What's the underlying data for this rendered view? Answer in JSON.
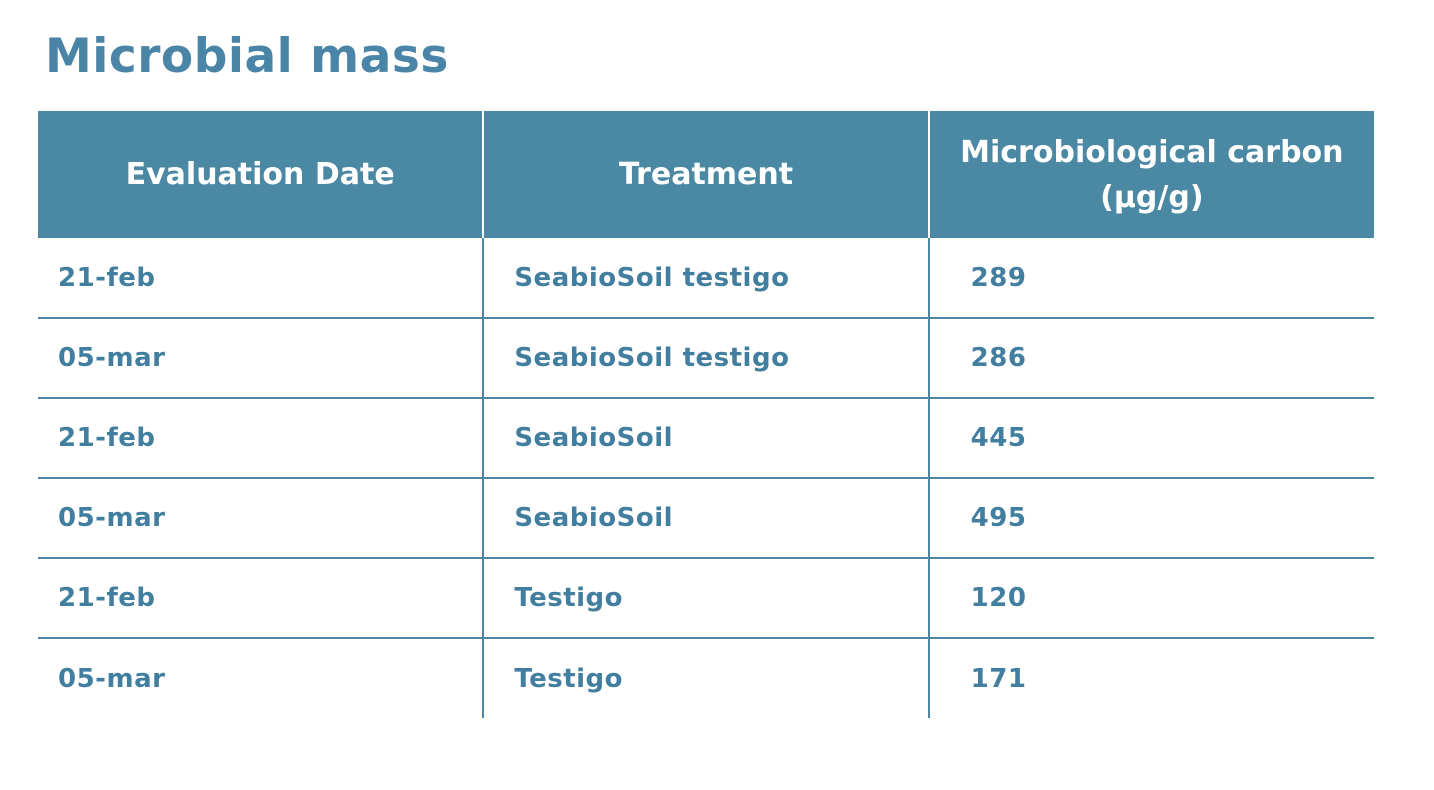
{
  "page": {
    "title": "Microbial mass"
  },
  "colors": {
    "header_bg": "#4A88A4",
    "header_text": "#FFFFFF",
    "body_text": "#417E9F",
    "title_text": "#4A84A6",
    "grid_line": "#4E86A3",
    "page_bg": "#FFFFFF"
  },
  "table": {
    "columns": [
      {
        "label": "Evaluation Date"
      },
      {
        "label": "Treatment"
      },
      {
        "label": "Microbiological carbon (µg/g)"
      }
    ],
    "rows": [
      {
        "date": "21-feb",
        "treatment": "SeabioSoil testigo",
        "carbon": "289"
      },
      {
        "date": "05-mar",
        "treatment": "SeabioSoil testigo",
        "carbon": "286"
      },
      {
        "date": "21-feb",
        "treatment": "SeabioSoil",
        "carbon": "445"
      },
      {
        "date": "05-mar",
        "treatment": "SeabioSoil",
        "carbon": "495"
      },
      {
        "date": "21-feb",
        "treatment": "Testigo",
        "carbon": "120"
      },
      {
        "date": "05-mar",
        "treatment": "Testigo",
        "carbon": "171"
      }
    ]
  },
  "chart_data": {
    "type": "table",
    "title": "Microbial mass",
    "columns": [
      "Evaluation Date",
      "Treatment",
      "Microbiological carbon (µg/g)"
    ],
    "rows": [
      [
        "21-feb",
        "SeabioSoil testigo",
        289
      ],
      [
        "05-mar",
        "SeabioSoil testigo",
        286
      ],
      [
        "21-feb",
        "SeabioSoil",
        445
      ],
      [
        "05-mar",
        "SeabioSoil",
        495
      ],
      [
        "21-feb",
        "Testigo",
        120
      ],
      [
        "05-mar",
        "Testigo",
        171
      ]
    ]
  }
}
